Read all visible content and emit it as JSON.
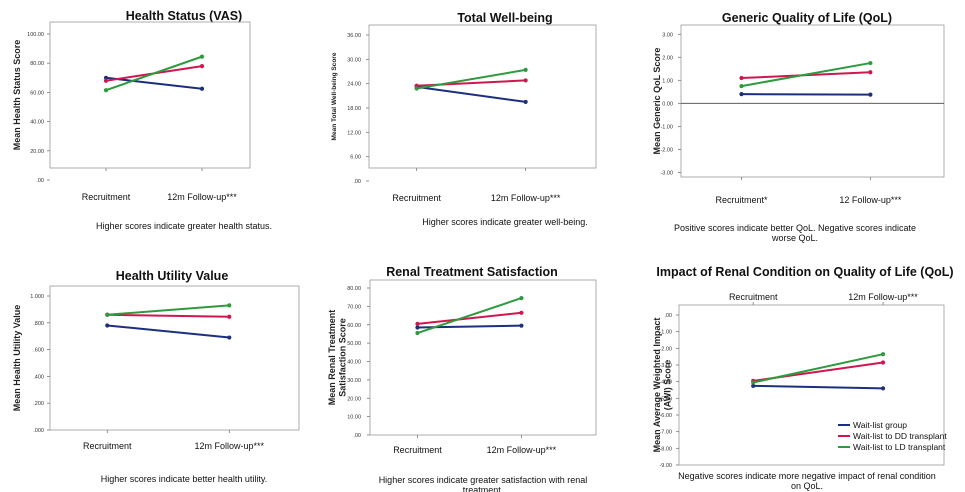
{
  "colors": {
    "wait_list": "#1c2f7e",
    "dd": "#d0164f",
    "ld": "#2e9a3e"
  },
  "legend": [
    "Wait-list group",
    "Wait-list to DD transplant",
    "Wait-list to LD transplant"
  ],
  "chart_data": [
    {
      "type": "line",
      "title": "Health Status (VAS)",
      "ylabel": "Mean Health Status Score",
      "categories": [
        "Recruitment",
        "12m Follow-up***"
      ],
      "yticks": [
        ".00",
        "20.00",
        "40.00",
        "60.00",
        "80.00",
        "100.00"
      ],
      "ylim": [
        0,
        100
      ],
      "series": [
        {
          "key": "wait_list",
          "values": [
            70,
            62.5
          ]
        },
        {
          "key": "dd",
          "values": [
            68,
            78
          ]
        },
        {
          "key": "ld",
          "values": [
            61.5,
            84.5
          ]
        }
      ],
      "caption": [
        "Higher scores indicate greater health status."
      ]
    },
    {
      "type": "line",
      "title": "Total Well-being",
      "ylabel": "Mean Total Well-being Score",
      "categories": [
        "Recruitment",
        "12m Follow-up***"
      ],
      "yticks": [
        ".00",
        "6.00",
        "12.00",
        "18.00",
        "24.00",
        "30.00",
        "36.00"
      ],
      "ylim": [
        0,
        36
      ],
      "series": [
        {
          "key": "wait_list",
          "values": [
            23.2,
            19.5
          ]
        },
        {
          "key": "dd",
          "values": [
            23.5,
            24.8
          ]
        },
        {
          "key": "ld",
          "values": [
            22.8,
            27.4
          ]
        }
      ],
      "caption": [
        "Higher scores indicate greater well-being."
      ]
    },
    {
      "type": "line",
      "title": "Generic Quality of Life (QoL)",
      "ylabel": "Mean Generic QoL Score",
      "categories": [
        "Recruitment*",
        "12 Follow-up***"
      ],
      "yticks": [
        "-3.00",
        "-2.00",
        "-1.00",
        "0.00",
        "1.00",
        "2.00",
        "3.00"
      ],
      "ylim": [
        -3.2,
        3.1
      ],
      "zero_line": true,
      "series": [
        {
          "key": "wait_list",
          "values": [
            0.4,
            0.38
          ]
        },
        {
          "key": "dd",
          "values": [
            1.1,
            1.35
          ]
        },
        {
          "key": "ld",
          "values": [
            0.75,
            1.75
          ]
        }
      ],
      "caption": [
        "Positive scores indicate better QoL. Negative scores indicate",
        "worse QoL."
      ]
    },
    {
      "type": "line",
      "title": "Health Utility Value",
      "ylabel": "Mean Health Utility Value",
      "categories": [
        "Recruitment",
        "12m Follow-up***"
      ],
      "yticks": [
        ".000",
        ".200",
        ".400",
        ".600",
        ".800",
        "1.000"
      ],
      "ylim": [
        0,
        1
      ],
      "series": [
        {
          "key": "wait_list",
          "values": [
            0.78,
            0.69
          ]
        },
        {
          "key": "dd",
          "values": [
            0.86,
            0.845
          ]
        },
        {
          "key": "ld",
          "values": [
            0.86,
            0.93
          ]
        }
      ],
      "caption": [
        "Higher scores indicate better health utility."
      ]
    },
    {
      "type": "line",
      "title": "Renal Treatment Satisfaction",
      "ylabel": [
        "Mean Renal Treatment",
        "Satisfaction Score"
      ],
      "categories": [
        "Recruitment",
        "12m Follow-up***"
      ],
      "yticks": [
        ".00",
        "10.00",
        "20.00",
        "30.00",
        "40.00",
        "50.00",
        "60.00",
        "70.00",
        "80.00"
      ],
      "ylim": [
        0,
        80
      ],
      "series": [
        {
          "key": "wait_list",
          "values": [
            58.5,
            59.5
          ]
        },
        {
          "key": "dd",
          "values": [
            60.5,
            66.5
          ]
        },
        {
          "key": "ld",
          "values": [
            55.5,
            74.5
          ]
        }
      ],
      "caption": [
        "Higher scores indicate greater satisfaction with renal",
        "treatment."
      ]
    },
    {
      "type": "line",
      "title": "Impact of Renal Condition on Quality of Life (QoL)",
      "ylabel": [
        "Mean Average Weighted Impact",
        "(AWI) Score"
      ],
      "categories": [
        "Recruitment",
        "12m Follow-up***"
      ],
      "x_axis_top": true,
      "yticks": [
        "-9.00",
        "-8.00",
        "-7.00",
        "-6.00",
        "-5.00",
        "-4.00",
        "-3.00",
        "-2.00",
        "-1.00",
        ".00"
      ],
      "ylim": [
        -9,
        0
      ],
      "series": [
        {
          "key": "wait_list",
          "values": [
            -4.25,
            -4.4
          ]
        },
        {
          "key": "dd",
          "values": [
            -3.95,
            -2.85
          ]
        },
        {
          "key": "ld",
          "values": [
            -4.05,
            -2.35
          ]
        }
      ],
      "caption": [
        "Negative scores indicate more negative impact of renal condition",
        "on QoL."
      ]
    }
  ]
}
